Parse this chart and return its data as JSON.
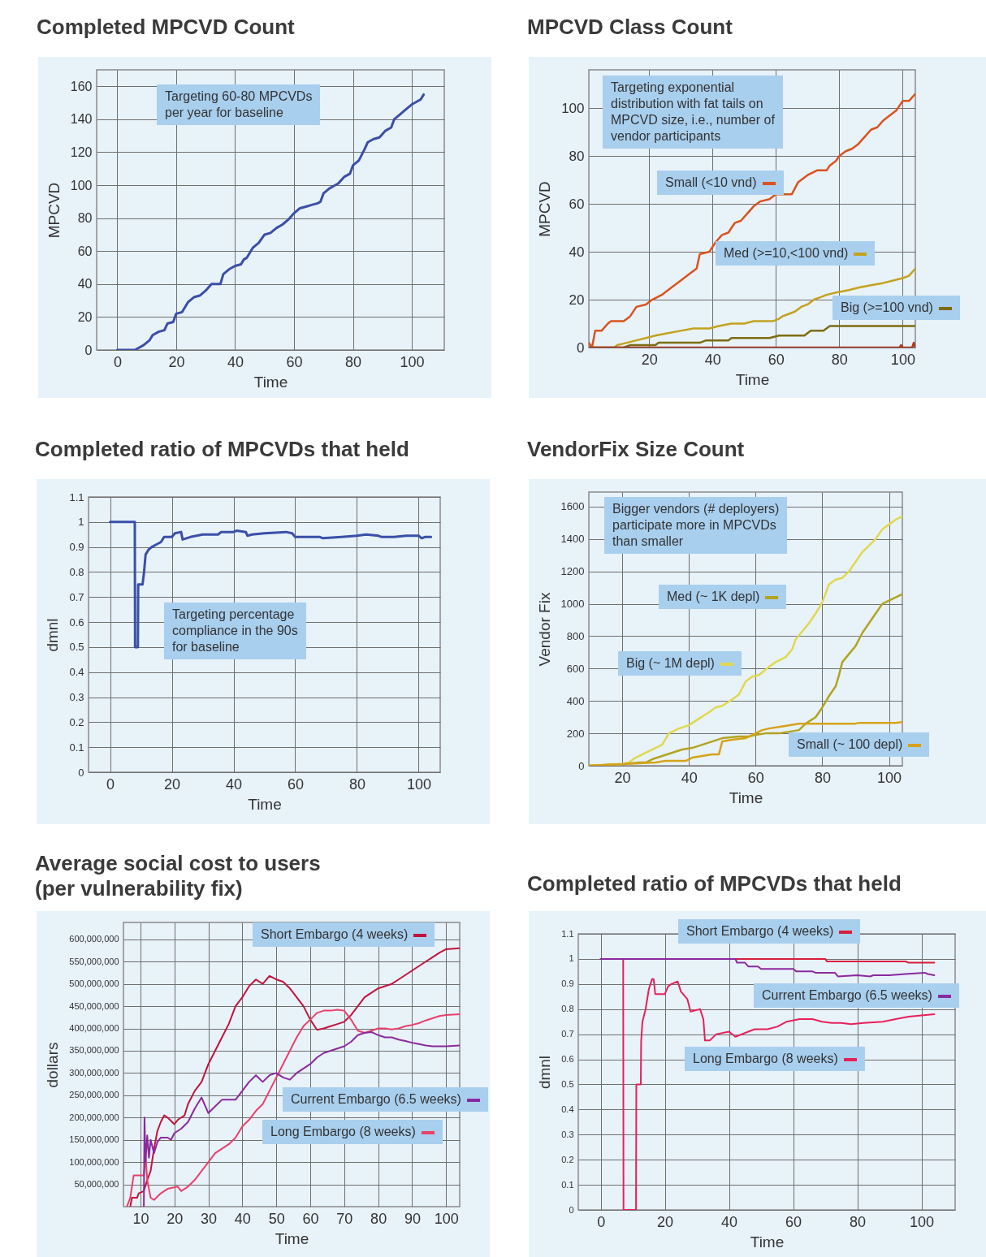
{
  "chart_data": [
    {
      "type": "line",
      "title": "Completed MPCVD Count",
      "xlabel": "Time",
      "ylabel": "MPCVD",
      "annotations": [
        "Targeting 60-80 MPCVDs per year for baseline"
      ],
      "xlim": [
        -7,
        111
      ],
      "ylim": [
        0,
        170
      ],
      "xticks": [
        0,
        20,
        40,
        60,
        80,
        100
      ],
      "yticks": [
        0,
        20,
        40,
        60,
        80,
        100,
        120,
        140,
        160
      ],
      "grid": true,
      "series": [
        {
          "color": "#3a4fa8",
          "x": [
            0,
            6,
            7,
            9,
            11,
            12,
            14,
            16,
            17,
            19,
            20,
            22,
            24,
            26,
            28,
            30,
            32,
            35,
            36,
            38,
            40,
            42,
            43,
            44,
            46,
            48,
            50,
            52,
            54,
            56,
            58,
            60,
            62,
            64,
            66,
            68,
            69,
            70,
            72,
            74,
            75,
            77,
            79,
            80,
            82,
            84,
            85,
            87,
            89,
            91,
            93,
            94,
            96,
            98,
            100,
            102,
            103,
            104
          ],
          "values": [
            0,
            0,
            1,
            3,
            6,
            9,
            11,
            12,
            16,
            17,
            22,
            23,
            29,
            32,
            33,
            36,
            40,
            40,
            46,
            49,
            51,
            52,
            55,
            56,
            62,
            65,
            70,
            71,
            74,
            76,
            79,
            83,
            86,
            87,
            88,
            89,
            90,
            95,
            98,
            100,
            101,
            105,
            107,
            112,
            115,
            122,
            126,
            128,
            129,
            133,
            135,
            140,
            143,
            146,
            149,
            151,
            152,
            155
          ]
        }
      ]
    },
    {
      "type": "line",
      "title": "MPCVD Class Count",
      "xlabel": "Time",
      "ylabel": "MPCVD",
      "annotations": [
        "Targeting exponential distribution with fat tails on MPCVD size, i.e., number of vendor participants"
      ],
      "xlim": [
        1,
        104
      ],
      "ylim": [
        0,
        116
      ],
      "xticks": [
        20,
        40,
        60,
        80,
        100
      ],
      "yticks": [
        0,
        20,
        40,
        60,
        80,
        100
      ],
      "grid": true,
      "legend": "right",
      "series": [
        {
          "name": "Small (<10 vnd)",
          "color": "#d9531e",
          "x": [
            1,
            2,
            3,
            5,
            7,
            8,
            12,
            14,
            16,
            19,
            21,
            24,
            27,
            30,
            33,
            35,
            36,
            39,
            41,
            43,
            45,
            47,
            49,
            51,
            53,
            55,
            58,
            60,
            65,
            67,
            70,
            73,
            76,
            77,
            79,
            80,
            82,
            84,
            86,
            88,
            90,
            92,
            94,
            96,
            98,
            100,
            102,
            104
          ],
          "values": [
            2,
            0,
            7,
            7,
            10,
            11,
            11,
            13,
            17,
            18,
            20,
            22,
            25,
            28,
            31,
            33,
            39,
            40,
            44,
            47,
            48,
            52,
            53,
            56,
            59,
            61,
            62,
            64,
            64,
            69,
            72,
            74,
            74,
            76,
            78,
            80,
            82,
            83,
            85,
            88,
            91,
            92,
            95,
            97,
            99,
            103,
            103,
            106
          ]
        },
        {
          "name": "Med (>=10,<100 vnd)",
          "color": "#c4a21e",
          "x": [
            1,
            9,
            10,
            13,
            16,
            19,
            22,
            26,
            30,
            34,
            39,
            42,
            46,
            50,
            53,
            59,
            61,
            62,
            64,
            66,
            68,
            70,
            72,
            74,
            76,
            79,
            83,
            86,
            90,
            94,
            97,
            100,
            102,
            104
          ],
          "values": [
            0,
            0,
            1,
            2,
            3,
            4,
            5,
            6,
            7,
            8,
            8,
            9,
            10,
            10,
            11,
            11,
            12,
            13,
            14,
            15,
            17,
            18,
            20,
            21,
            22,
            23,
            24,
            25,
            26,
            27,
            28,
            29,
            30,
            33
          ]
        },
        {
          "name": "Big (>=100 vnd)",
          "color": "#7d6c12",
          "x": [
            1,
            12,
            14,
            22,
            23,
            36,
            38,
            45,
            46,
            58,
            61,
            69,
            71,
            75,
            77,
            104
          ],
          "values": [
            0,
            0,
            1,
            1,
            2,
            2,
            3,
            3,
            4,
            4,
            5,
            5,
            7,
            7,
            9,
            9
          ]
        },
        {
          "color": "#b5361e",
          "x": [
            1,
            50,
            99,
            99.5,
            100,
            103,
            103.5,
            104
          ],
          "values": [
            0,
            0,
            0,
            1,
            0,
            0,
            2,
            0
          ]
        }
      ]
    },
    {
      "type": "line",
      "title": "Completed ratio of MPCVDs that held",
      "xlabel": "Time",
      "ylabel": "dmnl",
      "annotations": [
        "Targeting percentage compliance in the 90s for baseline"
      ],
      "xlim": [
        -7,
        107
      ],
      "ylim": [
        0,
        1.1
      ],
      "xticks": [
        0,
        20,
        40,
        60,
        80,
        100
      ],
      "yticks": [
        0,
        0.1,
        0.2,
        0.3,
        0.4,
        0.5,
        0.6,
        0.7,
        0.8,
        0.9,
        1,
        1.1
      ],
      "grid": true,
      "series": [
        {
          "color": "#3a4fa8",
          "x": [
            0,
            8,
            8.1,
            9,
            9.1,
            10.5,
            11,
            11.5,
            12.5,
            13.5,
            15,
            16.5,
            17.5,
            20,
            21,
            23,
            23.5,
            26,
            30,
            35,
            36,
            40,
            41,
            44,
            44.5,
            46,
            50,
            57,
            59,
            60,
            68,
            69,
            75,
            80,
            83,
            87,
            88,
            92,
            96,
            100,
            101,
            102,
            104
          ],
          "values": [
            1,
            1,
            0.5,
            0.5,
            0.75,
            0.75,
            0.8,
            0.87,
            0.89,
            0.9,
            0.91,
            0.92,
            0.94,
            0.94,
            0.955,
            0.96,
            0.93,
            0.94,
            0.95,
            0.95,
            0.96,
            0.96,
            0.965,
            0.96,
            0.945,
            0.95,
            0.955,
            0.96,
            0.955,
            0.94,
            0.94,
            0.935,
            0.94,
            0.945,
            0.95,
            0.945,
            0.94,
            0.94,
            0.945,
            0.945,
            0.935,
            0.94,
            0.94
          ]
        }
      ]
    },
    {
      "type": "line",
      "title": "VendorFix Size Count",
      "xlabel": "Time",
      "ylabel": "Vendor Fix",
      "annotations": [
        "Bigger vendors (# deployers) participate more in MPCVDs than smaller"
      ],
      "xlim": [
        10,
        104
      ],
      "ylim": [
        0,
        1690
      ],
      "xticks": [
        20,
        40,
        60,
        80,
        100
      ],
      "yticks": [
        0,
        200,
        400,
        600,
        800,
        1000,
        1200,
        1400,
        1600
      ],
      "grid": true,
      "legend": "right",
      "series": [
        {
          "name": "Big (~ 1M depl)",
          "color": "#e2d84e",
          "x": [
            10,
            20,
            22,
            24,
            27,
            30,
            32,
            34,
            37,
            40,
            43,
            46,
            48,
            50,
            53,
            55,
            57,
            59,
            61,
            64,
            66,
            69,
            71,
            72,
            74,
            76,
            78,
            80,
            82,
            84,
            86,
            88,
            90,
            92,
            94,
            96,
            98,
            100,
            102,
            104
          ],
          "values": [
            0,
            10,
            20,
            50,
            80,
            110,
            130,
            200,
            230,
            250,
            290,
            330,
            360,
            370,
            410,
            440,
            520,
            550,
            560,
            610,
            640,
            670,
            720,
            780,
            830,
            880,
            940,
            1010,
            1120,
            1150,
            1160,
            1200,
            1260,
            1320,
            1360,
            1400,
            1460,
            1490,
            1520,
            1540
          ]
        },
        {
          "name": "Med (~ 1K depl)",
          "color": "#b3a420",
          "x": [
            10,
            20,
            25,
            27,
            29,
            32,
            35,
            38,
            41,
            44,
            47,
            50,
            55,
            58,
            60,
            63,
            67,
            70,
            73,
            75,
            78,
            80,
            82,
            84,
            85,
            86,
            88,
            90,
            92,
            94,
            96,
            98,
            101,
            104
          ],
          "values": [
            0,
            10,
            20,
            20,
            40,
            60,
            80,
            100,
            110,
            130,
            150,
            170,
            180,
            180,
            190,
            200,
            200,
            210,
            220,
            260,
            300,
            360,
            430,
            490,
            560,
            640,
            690,
            740,
            820,
            880,
            940,
            1000,
            1030,
            1060
          ]
        },
        {
          "name": "Small (~ 100 depl)",
          "color": "#d6a317",
          "x": [
            10,
            20,
            25,
            30,
            33,
            39,
            41,
            44,
            47,
            49,
            50,
            53,
            57,
            60,
            62,
            64,
            67,
            70,
            73,
            90,
            91,
            102,
            104
          ],
          "values": [
            0,
            10,
            15,
            20,
            30,
            30,
            50,
            60,
            70,
            70,
            150,
            160,
            170,
            200,
            220,
            230,
            240,
            250,
            260,
            260,
            265,
            265,
            270
          ]
        }
      ]
    },
    {
      "type": "line",
      "title": "Average social cost to users\n(per vulnerability fix)",
      "xlabel": "Time",
      "ylabel": "dollars",
      "xlim": [
        5,
        104
      ],
      "ylim": [
        0,
        638000000
      ],
      "xticks": [
        10,
        20,
        30,
        40,
        50,
        60,
        70,
        80,
        90,
        100
      ],
      "yticks": [
        {
          "value": 50000000.0,
          "label": "50,000,000"
        },
        {
          "value": 100000000.0,
          "label": "100,000,000"
        },
        {
          "value": 150000000.0,
          "label": "150,000,000"
        },
        {
          "value": 200000000.0,
          "label": "200,000,000"
        },
        {
          "value": 250000000.0,
          "label": "250,000,000"
        },
        {
          "value": 300000000.0,
          "label": "300,000,000"
        },
        {
          "value": 350000000.0,
          "label": "350,000,000"
        },
        {
          "value": 400000000.0,
          "label": "400,000,000"
        },
        {
          "value": 450000000.0,
          "label": "450,000,000"
        },
        {
          "value": 500000000.0,
          "label": "500,000,000"
        },
        {
          "value": 550000000.0,
          "label": "550,000,000"
        },
        {
          "value": 600000000.0,
          "label": "600,000,000"
        }
      ],
      "grid": true,
      "legend": "right",
      "series": [
        {
          "name": "Short Embargo (4 weeks)",
          "color": "#c0143c",
          "x": [
            7,
            7.5,
            9,
            9.5,
            11,
            12,
            13,
            14,
            15,
            16,
            17,
            18,
            20,
            21,
            23,
            24,
            26,
            28,
            30,
            32,
            34,
            36,
            38,
            40,
            42,
            44,
            46,
            48,
            50,
            52,
            54,
            56,
            58,
            60,
            62,
            64,
            66,
            68,
            70,
            72,
            74,
            76,
            78,
            80,
            82,
            84,
            86,
            88,
            90,
            92,
            94,
            96,
            98,
            100,
            104
          ],
          "values": [
            0,
            20000000.0,
            20000000.0,
            30000000.0,
            35000000.0,
            60000000.0,
            80000000.0,
            130000000.0,
            170000000.0,
            190000000.0,
            205000000.0,
            200000000.0,
            185000000.0,
            195000000.0,
            205000000.0,
            230000000.0,
            260000000.0,
            280000000.0,
            320000000.0,
            350000000.0,
            380000000.0,
            410000000.0,
            450000000.0,
            470000000.0,
            495000000.0,
            510000000.0,
            500000000.0,
            518000000.0,
            510000000.0,
            505000000.0,
            490000000.0,
            470000000.0,
            450000000.0,
            420000000.0,
            397000000.0,
            400000000.0,
            405000000.0,
            410000000.0,
            415000000.0,
            430000000.0,
            450000000.0,
            470000000.0,
            480000000.0,
            490000000.0,
            495000000.0,
            500000000.0,
            510000000.0,
            520000000.0,
            530000000.0,
            540000000.0,
            550000000.0,
            560000000.0,
            570000000.0,
            578000000.0,
            580000000.0
          ]
        },
        {
          "name": "Long Embargo (8 weeks)",
          "color": "#e8406a",
          "x": [
            6,
            7,
            8,
            11,
            11.5,
            12,
            13,
            14,
            16,
            18,
            21,
            22,
            24,
            26,
            28,
            30,
            32,
            34,
            36,
            38,
            40,
            42,
            44,
            46,
            48,
            50,
            52,
            54,
            56,
            58,
            60,
            62,
            64,
            66,
            68,
            70,
            72,
            74,
            76,
            78,
            80,
            82,
            84,
            86,
            88,
            90,
            92,
            94,
            96,
            98,
            100,
            104
          ],
          "values": [
            0,
            20000000.0,
            70000000.0,
            70000000.0,
            115000000.0,
            60000000.0,
            20000000.0,
            15000000.0,
            30000000.0,
            40000000.0,
            45000000.0,
            35000000.0,
            45000000.0,
            60000000.0,
            80000000.0,
            100000000.0,
            120000000.0,
            130000000.0,
            140000000.0,
            155000000.0,
            180000000.0,
            195000000.0,
            215000000.0,
            230000000.0,
            260000000.0,
            290000000.0,
            320000000.0,
            350000000.0,
            380000000.0,
            405000000.0,
            420000000.0,
            435000000.0,
            440000000.0,
            440000000.0,
            442000000.0,
            440000000.0,
            420000000.0,
            395000000.0,
            390000000.0,
            395000000.0,
            400000000.0,
            400000000.0,
            398000000.0,
            400000000.0,
            405000000.0,
            408000000.0,
            412000000.0,
            418000000.0,
            423000000.0,
            428000000.0,
            430000000.0,
            432000000.0
          ]
        },
        {
          "name": "Current Embargo (6.5 weeks)",
          "color": "#8a2a9e",
          "x": [
            11,
            11.2,
            11.5,
            12,
            12.5,
            13,
            14,
            15,
            16,
            18,
            19,
            20,
            22,
            24,
            26,
            28,
            30,
            32,
            34,
            36,
            38,
            40,
            42,
            44,
            46,
            48,
            50,
            52,
            54,
            56,
            58,
            60,
            62,
            64,
            66,
            68,
            70,
            72,
            74,
            76,
            78,
            80,
            82,
            84,
            86,
            88,
            90,
            92,
            94,
            96,
            100,
            104
          ],
          "values": [
            0,
            200000000.0,
            100000000.0,
            160000000.0,
            110000000.0,
            150000000.0,
            120000000.0,
            145000000.0,
            155000000.0,
            155000000.0,
            150000000.0,
            165000000.0,
            175000000.0,
            190000000.0,
            220000000.0,
            245000000.0,
            210000000.0,
            225000000.0,
            240000000.0,
            240000000.0,
            240000000.0,
            260000000.0,
            280000000.0,
            295000000.0,
            280000000.0,
            295000000.0,
            300000000.0,
            290000000.0,
            285000000.0,
            300000000.0,
            310000000.0,
            320000000.0,
            335000000.0,
            345000000.0,
            350000000.0,
            355000000.0,
            360000000.0,
            370000000.0,
            385000000.0,
            390000000.0,
            392000000.0,
            385000000.0,
            380000000.0,
            380000000.0,
            375000000.0,
            372000000.0,
            368000000.0,
            365000000.0,
            362000000.0,
            360000000.0,
            360000000.0,
            362000000.0
          ]
        }
      ]
    },
    {
      "type": "line",
      "title": "Completed ratio of MPCVDs that held",
      "xlabel": "Time",
      "ylabel": "dmnl",
      "xlim": [
        -7,
        110.5
      ],
      "ylim": [
        0,
        1.1
      ],
      "xticks": [
        0,
        20,
        40,
        60,
        80,
        100
      ],
      "yticks": [
        0,
        0.1,
        0.2,
        0.3,
        0.4,
        0.5,
        0.6,
        0.7,
        0.8,
        0.9,
        1,
        1.1
      ],
      "grid": true,
      "legend": "top right",
      "series": [
        {
          "name": "Short Embargo (4 weeks)",
          "color": "#d81e3c",
          "x": [
            0,
            70,
            70.5,
            95,
            96,
            104
          ],
          "values": [
            1,
            1,
            0.99,
            0.99,
            0.985,
            0.985
          ]
        },
        {
          "name": "Long Embargo (8 weeks)",
          "color": "#e8205a",
          "x": [
            0,
            7,
            7.1,
            11,
            11.1,
            12.5,
            12.6,
            13,
            14,
            15,
            16,
            16.5,
            17,
            20,
            21,
            22,
            24,
            25,
            27,
            28,
            31,
            32,
            32.5,
            34,
            36,
            40,
            42,
            46,
            48,
            52,
            55,
            58,
            62,
            66,
            69,
            72,
            75,
            78,
            82,
            88,
            92,
            96,
            100,
            104
          ],
          "values": [
            1,
            1,
            0,
            0,
            0.5,
            0.5,
            0.67,
            0.75,
            0.8,
            0.88,
            0.92,
            0.92,
            0.86,
            0.86,
            0.89,
            0.9,
            0.91,
            0.87,
            0.84,
            0.79,
            0.8,
            0.76,
            0.675,
            0.675,
            0.7,
            0.71,
            0.69,
            0.71,
            0.72,
            0.72,
            0.73,
            0.75,
            0.76,
            0.76,
            0.75,
            0.745,
            0.745,
            0.74,
            0.745,
            0.75,
            0.76,
            0.77,
            0.775,
            0.78
          ]
        },
        {
          "name": "Current Embargo (6.5 weeks)",
          "color": "#8a2a9e",
          "x": [
            0,
            42,
            42.5,
            45,
            46,
            49,
            50,
            60,
            61,
            66,
            67,
            73,
            74,
            80,
            84,
            85,
            90,
            95,
            101,
            102,
            104
          ],
          "values": [
            1,
            1,
            0.985,
            0.985,
            0.97,
            0.97,
            0.96,
            0.96,
            0.95,
            0.95,
            0.945,
            0.945,
            0.93,
            0.935,
            0.93,
            0.935,
            0.935,
            0.94,
            0.945,
            0.94,
            0.935
          ]
        }
      ]
    }
  ]
}
